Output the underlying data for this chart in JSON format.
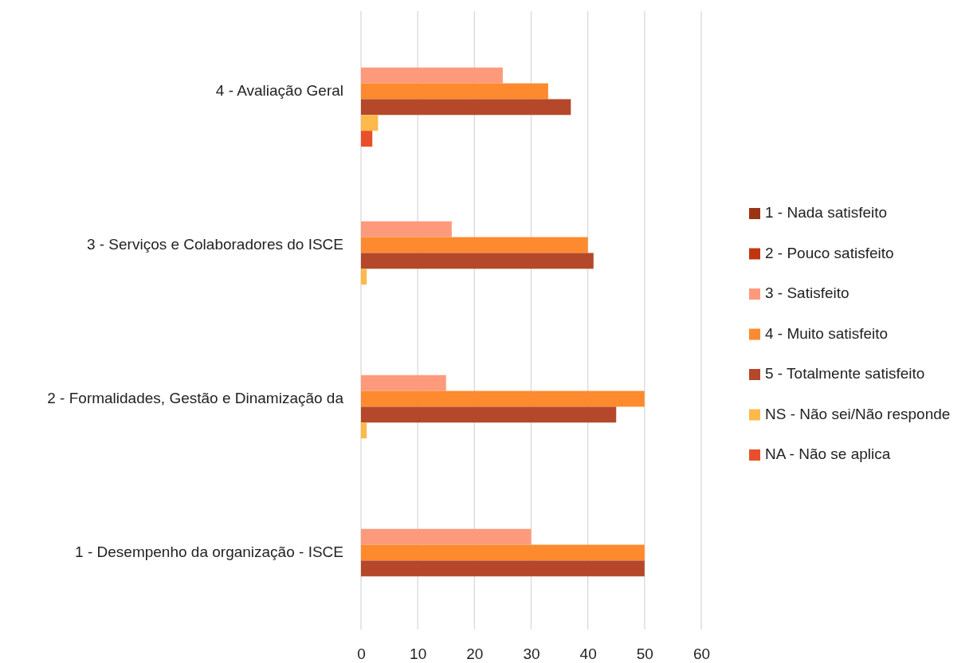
{
  "chart_data": {
    "type": "bar",
    "orientation": "horizontal",
    "categories": [
      "4 - Avaliação Geral",
      "3 - Serviços e Colaboradores do ISCE",
      "2 - Formalidades, Gestão e Dinamização da",
      "1 - Desempenho da organização - ISCE"
    ],
    "series": [
      {
        "name": "1 - Nada satisfeito",
        "color": "#9c3414",
        "values": [
          0,
          0,
          0,
          0
        ]
      },
      {
        "name": "2 - Pouco satisfeito",
        "color": "#c0360f",
        "values": [
          0,
          0,
          0,
          0
        ]
      },
      {
        "name": "3 - Satisfeito",
        "color": "#fd9a7c",
        "values": [
          25,
          16,
          15,
          30
        ]
      },
      {
        "name": "4 - Muito satisfeito",
        "color": "#fd8a2e",
        "values": [
          33,
          40,
          50,
          50
        ]
      },
      {
        "name": "5 - Totalmente satisfeito",
        "color": "#b5482a",
        "values": [
          37,
          41,
          45,
          50
        ]
      },
      {
        "name": "NS - Não sei/Não responde",
        "color": "#fdb94a",
        "values": [
          3,
          1,
          1,
          0
        ]
      },
      {
        "name": "NA - Não se aplica",
        "color": "#e8502c",
        "values": [
          2,
          0,
          0,
          0
        ]
      }
    ],
    "xlim": [
      0,
      60
    ],
    "xticks": [
      0,
      10,
      20,
      30,
      40,
      50,
      60
    ],
    "grid": "x",
    "legend": "right"
  }
}
